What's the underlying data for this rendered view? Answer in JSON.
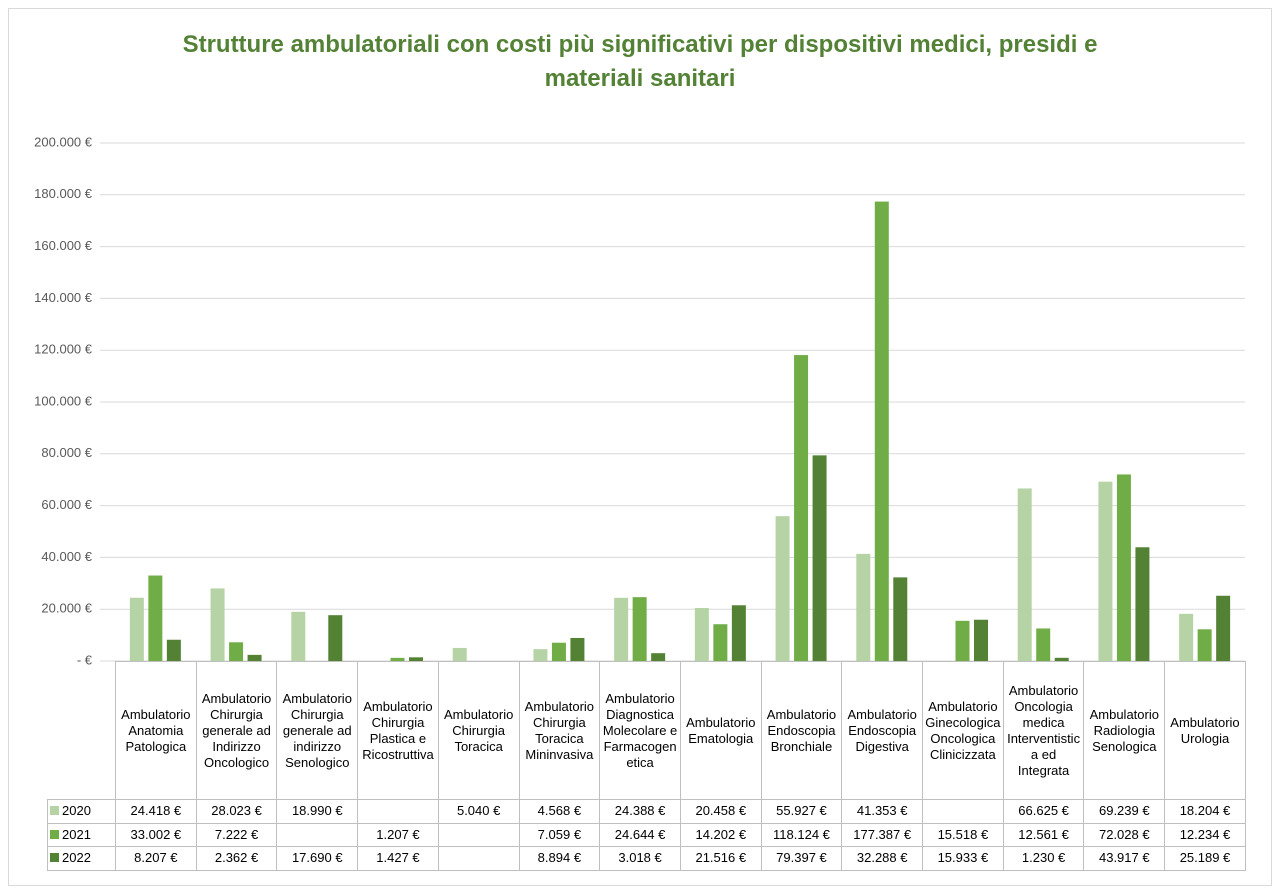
{
  "chart_data": {
    "type": "bar",
    "title": "Strutture ambulatoriali con costi più significativi per dispositivi medici, presidi e materiali sanitari",
    "categories": [
      "Ambulatorio Anatomia Patologica",
      "Ambulatorio Chirurgia generale ad Indirizzo Oncologico",
      "Ambulatorio Chirurgia generale ad indirizzo Senologico",
      "Ambulatorio Chirurgia Plastica e Ricostruttiva",
      "Ambulatorio Chirurgia Toracica",
      "Ambulatorio Chirurgia Toracica Mininvasiva",
      "Ambulatorio Diagnostica Molecolare e Farmacogenetica",
      "Ambulatorio Ematologia",
      "Ambulatorio Endoscopia Bronchiale",
      "Ambulatorio Endoscopia Digestiva",
      "Ambulatorio Ginecologica Oncologica Clinicizzata",
      "Ambulatorio Oncologia medica Interventistica ed Integrata",
      "Ambulatorio Radiologia Senologica",
      "Ambulatorio Urologia"
    ],
    "series": [
      {
        "name": "2020",
        "color": "#b5d3a5",
        "values": [
          24418,
          28023,
          18990,
          null,
          5040,
          4568,
          24388,
          20458,
          55927,
          41353,
          null,
          66625,
          69239,
          18204
        ],
        "value_labels": [
          "24.418 €",
          "28.023 €",
          "18.990 €",
          null,
          "5.040 €",
          "4.568 €",
          "24.388 €",
          "20.458 €",
          "55.927 €",
          "41.353 €",
          null,
          "66.625 €",
          "69.239 €",
          "18.204 €"
        ]
      },
      {
        "name": "2021",
        "color": "#70ad47",
        "values": [
          33002,
          7222,
          null,
          1207,
          null,
          7059,
          24644,
          14202,
          118124,
          177387,
          15518,
          12561,
          72028,
          12234
        ],
        "value_labels": [
          "33.002 €",
          "7.222 €",
          null,
          "1.207 €",
          null,
          "7.059 €",
          "24.644 €",
          "14.202 €",
          "118.124 €",
          "177.387 €",
          "15.518 €",
          "12.561 €",
          "72.028 €",
          "12.234 €"
        ]
      },
      {
        "name": "2022",
        "color": "#548235",
        "values": [
          8207,
          2362,
          17690,
          1427,
          null,
          8894,
          3018,
          21516,
          79397,
          32288,
          15933,
          1230,
          43917,
          25189
        ],
        "value_labels": [
          "8.207 €",
          "2.362 €",
          "17.690 €",
          "1.427 €",
          null,
          "8.894 €",
          "3.018 €",
          "21.516 €",
          "79.397 €",
          "32.288 €",
          "15.933 €",
          "1.230 €",
          "43.917 €",
          "25.189 €"
        ]
      }
    ],
    "ylim": [
      0,
      200000
    ],
    "yticks": [
      {
        "value": 0,
        "label": "- €"
      },
      {
        "value": 20000,
        "label": "20.000 €"
      },
      {
        "value": 40000,
        "label": "40.000 €"
      },
      {
        "value": 60000,
        "label": "60.000 €"
      },
      {
        "value": 80000,
        "label": "80.000 €"
      },
      {
        "value": 100000,
        "label": "100.000 €"
      },
      {
        "value": 120000,
        "label": "120.000 €"
      },
      {
        "value": 140000,
        "label": "140.000 €"
      },
      {
        "value": 160000,
        "label": "160.000 €"
      },
      {
        "value": 180000,
        "label": "180.000 €"
      },
      {
        "value": 200000,
        "label": "200.000 €"
      }
    ],
    "grid": true
  }
}
